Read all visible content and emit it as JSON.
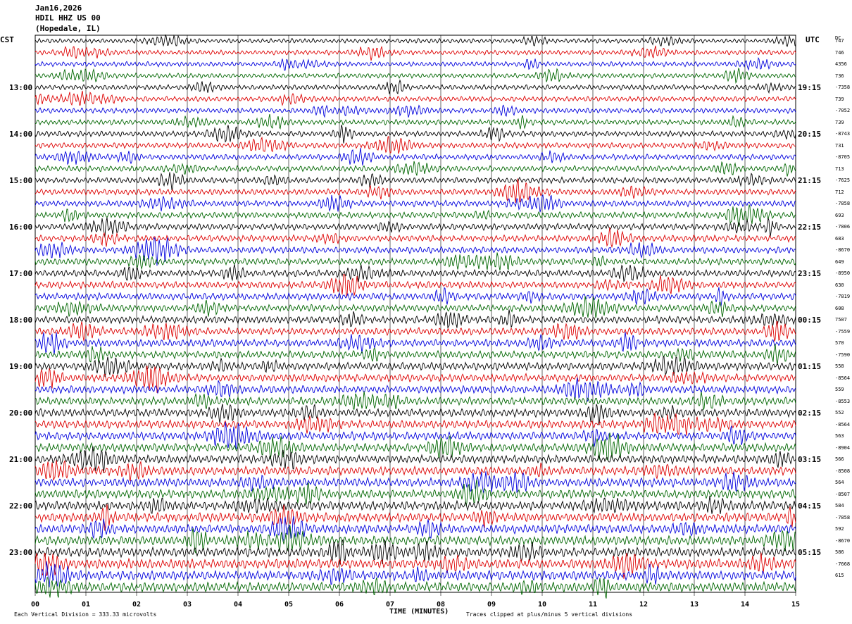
{
  "header": {
    "date": "Jan16,2026",
    "station": "HDIL HHZ US 00",
    "location": "(Hopedale, IL)"
  },
  "left_tz": "CST",
  "right_tz": "UTC",
  "dc_label": "DC",
  "footer": {
    "scale": "Each Vertical Division =  333.33 microvolts",
    "clip": "Traces clipped at plus/minus 5 vertical divisions"
  },
  "colors": {
    "black": "#000000",
    "red": "#dd0000",
    "blue": "#0000dd",
    "green": "#006600",
    "grid": "#000000"
  },
  "chart_data": {
    "type": "line",
    "title": "HDIL HHZ US 00",
    "xlabel": "TIME (MINUTES)",
    "x_ticks": [
      "00",
      "01",
      "02",
      "03",
      "04",
      "05",
      "06",
      "07",
      "08",
      "09",
      "10",
      "11",
      "12",
      "13",
      "14",
      "15"
    ],
    "xlim": [
      0,
      15
    ],
    "trace_minutes": 15,
    "trace_count": 48,
    "trace_colors_cycle": [
      "black",
      "red",
      "blue",
      "green"
    ],
    "left_hour_labels": [
      "13:00",
      "14:00",
      "15:00",
      "16:00",
      "17:00",
      "18:00",
      "19:00",
      "20:00",
      "21:00",
      "22:00",
      "23:00"
    ],
    "right_hour_labels": [
      "19:15",
      "20:15",
      "21:15",
      "22:15",
      "23:15",
      "00:15",
      "01:15",
      "02:15",
      "03:15",
      "04:15",
      "05:15"
    ],
    "dc_offsets": [
      "747",
      "746",
      "4356",
      "736",
      "-7358",
      "739",
      "-7052",
      "739",
      "-8743",
      "731",
      "-8705",
      "713",
      "-7625",
      "712",
      "-7858",
      "693",
      "-7806",
      "683",
      "-8670",
      "649",
      "-8950",
      "630",
      "-7819",
      "608",
      "7507",
      "-7559",
      "570",
      "-7590",
      "558",
      "-8564",
      "559",
      "-8553",
      "552",
      "-8564",
      "563",
      "-8904",
      "566",
      "-8508",
      "564",
      "-8507",
      "584",
      "-7858",
      "592",
      "-8670",
      "586",
      "-7668",
      "615"
    ]
  }
}
